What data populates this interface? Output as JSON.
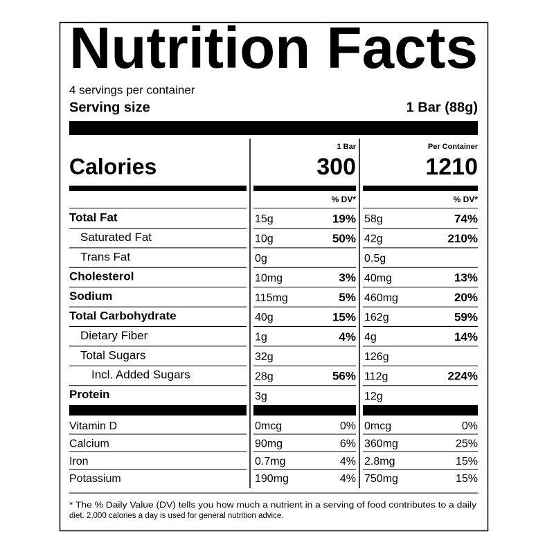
{
  "header": {
    "title": "Nutrition Facts",
    "servings": "4 servings per container",
    "serving_size_label": "Serving size",
    "serving_size_value": "1 Bar (88g)"
  },
  "columns": [
    "1 Bar",
    "Per Container"
  ],
  "calories": {
    "label": "Calories",
    "values": [
      "300",
      "1210"
    ]
  },
  "dv_header": [
    "% DV*",
    "% DV*"
  ],
  "nutrients": [
    {
      "name": "Total Fat",
      "style": "main",
      "amounts": [
        "15g",
        "58g"
      ],
      "dv": [
        "19%",
        "74%"
      ]
    },
    {
      "name": "Saturated Fat",
      "style": "sub",
      "amounts": [
        "10g",
        "42g"
      ],
      "dv": [
        "50%",
        "210%"
      ]
    },
    {
      "name": "Trans Fat",
      "style": "sub",
      "amounts": [
        "0g",
        "0.5g"
      ]
    },
    {
      "name": "Cholesterol",
      "style": "main",
      "amounts": [
        "10mg",
        "40mg"
      ],
      "dv": [
        "3%",
        "13%"
      ]
    },
    {
      "name": "Sodium",
      "style": "main",
      "amounts": [
        "115mg",
        "460mg"
      ],
      "dv": [
        "5%",
        "20%"
      ]
    },
    {
      "name": "Total Carbohydrate",
      "style": "main",
      "amounts": [
        "40g",
        "162g"
      ],
      "dv": [
        "15%",
        "59%"
      ]
    },
    {
      "name": "Dietary Fiber",
      "style": "sub",
      "amounts": [
        "1g",
        "4g"
      ],
      "dv": [
        "4%",
        "14%"
      ]
    },
    {
      "name": "Total Sugars",
      "style": "sub",
      "amounts": [
        "32g",
        "126g"
      ]
    },
    {
      "name": "Incl. Added Sugars",
      "style": "subsub",
      "amounts": [
        "28g",
        "112g"
      ],
      "dv": [
        "56%",
        "224%"
      ]
    },
    {
      "name": "Protein",
      "style": "main",
      "amounts": [
        "3g",
        "12g"
      ]
    }
  ],
  "vitamins": [
    {
      "name": "Vitamin D",
      "amounts": [
        "0mcg",
        "0mcg"
      ],
      "dv": [
        "0%",
        "0%"
      ]
    },
    {
      "name": "Calcium",
      "amounts": [
        "90mg",
        "360mg"
      ],
      "dv": [
        "6%",
        "25%"
      ]
    },
    {
      "name": "Iron",
      "amounts": [
        "0.7mg",
        "2.8mg"
      ],
      "dv": [
        "4%",
        "15%"
      ]
    },
    {
      "name": "Potassium",
      "amounts": [
        "190mg",
        "750mg"
      ],
      "dv": [
        "4%",
        "15%"
      ]
    }
  ],
  "footnote": [
    "* The % Daily Value (DV) tells you how much a nutrient in a serving of food contributes to a daily",
    "diet. 2,000 calories a day is used for general nutrition advice."
  ]
}
